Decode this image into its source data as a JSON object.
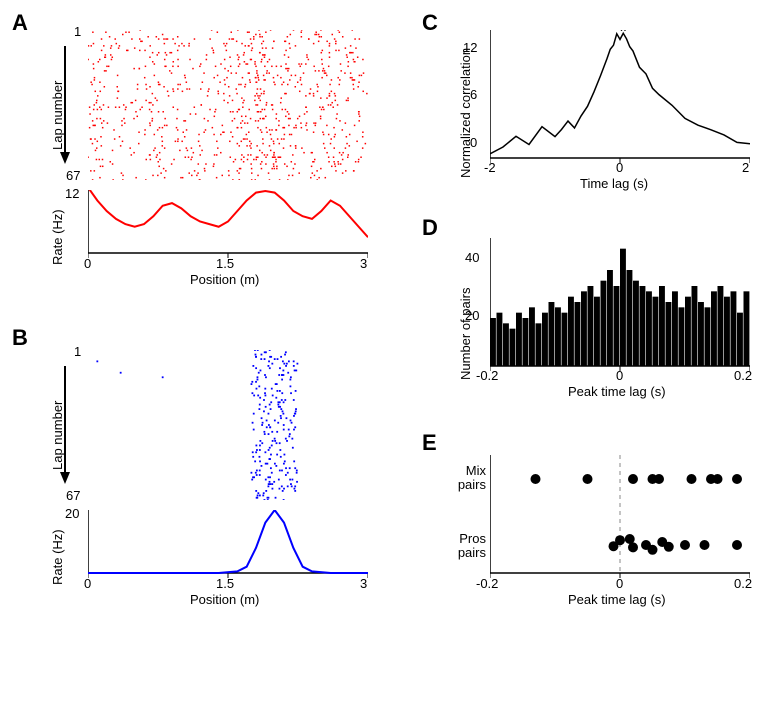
{
  "figure_width": 777,
  "figure_height": 703,
  "background_color": "#ffffff",
  "text_color": "#000000",
  "panel_label_fontsize": 22,
  "axis_label_fontsize": 13,
  "tick_fontsize": 13,
  "panelA": {
    "label": "A",
    "raster": {
      "type": "raster",
      "color": "#ff0000",
      "ylabel": "Lap number",
      "ymin": 1,
      "ymax": 67,
      "xmin": 0,
      "xmax": 3,
      "n_laps": 67,
      "density_profile_x": [
        0,
        0.1,
        0.2,
        0.3,
        0.4,
        0.5,
        0.6,
        0.7,
        0.8,
        0.9,
        1.0,
        1.1,
        1.2,
        1.3,
        1.4,
        1.5,
        1.6,
        1.7,
        1.8,
        1.9,
        2.0,
        2.1,
        2.2,
        2.3,
        2.4,
        2.5,
        2.6,
        2.7,
        2.8,
        2.9,
        3.0
      ],
      "density_profile_y": [
        0.6,
        0.5,
        0.4,
        0.3,
        0.3,
        0.35,
        0.5,
        0.6,
        0.5,
        0.4,
        0.35,
        0.3,
        0.35,
        0.4,
        0.45,
        0.55,
        0.65,
        0.75,
        0.8,
        0.85,
        0.8,
        0.6,
        0.45,
        0.4,
        0.4,
        0.5,
        0.6,
        0.5,
        0.35,
        0.3,
        0.25
      ],
      "marker_size": 1.5
    },
    "rate": {
      "type": "line",
      "color": "#ff0000",
      "line_width": 2,
      "xlabel": "Position (m)",
      "ylabel": "Rate (Hz)",
      "xlim": [
        0,
        3
      ],
      "ylim": [
        0,
        12
      ],
      "xticks": [
        0,
        1.5,
        3
      ],
      "yticks": [
        12
      ],
      "x": [
        0,
        0.1,
        0.2,
        0.3,
        0.4,
        0.5,
        0.6,
        0.7,
        0.8,
        0.9,
        1.0,
        1.1,
        1.2,
        1.3,
        1.4,
        1.5,
        1.6,
        1.7,
        1.8,
        1.9,
        2.0,
        2.1,
        2.2,
        2.3,
        2.4,
        2.5,
        2.6,
        2.7,
        2.8,
        2.9,
        3.0
      ],
      "y": [
        12.5,
        10,
        8,
        6.5,
        5.5,
        5,
        5.5,
        7,
        9,
        9.5,
        8.5,
        7,
        6,
        5.5,
        5,
        6,
        8,
        10,
        11.5,
        11.8,
        11.5,
        10,
        8,
        7,
        6.5,
        8,
        10,
        9,
        7,
        5,
        3
      ]
    }
  },
  "panelB": {
    "label": "B",
    "raster": {
      "type": "raster",
      "color": "#0000ff",
      "ylabel": "Lap number",
      "ymin": 1,
      "ymax": 67,
      "xmin": 0,
      "xmax": 3,
      "n_laps": 67,
      "field_center": 2.0,
      "field_halfwidth": 0.25,
      "spikes_per_lap": 3,
      "marker_size": 1.8,
      "sparse_outliers": [
        [
          0.1,
          5
        ],
        [
          0.35,
          10
        ],
        [
          0.8,
          12
        ]
      ]
    },
    "rate": {
      "type": "line",
      "color": "#0000ff",
      "line_width": 2,
      "xlabel": "Position (m)",
      "ylabel": "Rate (Hz)",
      "xlim": [
        0,
        3
      ],
      "ylim": [
        0,
        20
      ],
      "xticks": [
        0,
        1.5,
        3
      ],
      "yticks": [
        20
      ],
      "x": [
        0,
        0.2,
        0.4,
        0.6,
        0.8,
        1.0,
        1.2,
        1.4,
        1.6,
        1.7,
        1.8,
        1.9,
        2.0,
        2.1,
        2.2,
        2.3,
        2.4,
        2.6,
        2.8,
        3.0
      ],
      "y": [
        0,
        0,
        0,
        0,
        0,
        0,
        0,
        0,
        0.5,
        2,
        8,
        16,
        20,
        16,
        8,
        2,
        0.5,
        0,
        0,
        0
      ]
    }
  },
  "panelC": {
    "label": "C",
    "type": "line",
    "color": "#000000",
    "line_width": 1.5,
    "xlabel": "Time lag (s)",
    "ylabel": "Normalized correlation",
    "xlim": [
      -2,
      2
    ],
    "ylim": [
      -2,
      12
    ],
    "xticks": [
      -2,
      0,
      2
    ],
    "yticks": [
      0,
      6,
      12
    ],
    "star": "*",
    "star_x": 0.05,
    "star_y": 12.5,
    "x": [
      -2,
      -1.8,
      -1.6,
      -1.4,
      -1.2,
      -1.0,
      -0.9,
      -0.8,
      -0.7,
      -0.6,
      -0.5,
      -0.4,
      -0.3,
      -0.2,
      -0.15,
      -0.1,
      -0.05,
      0,
      0.05,
      0.1,
      0.15,
      0.2,
      0.3,
      0.4,
      0.5,
      0.6,
      0.8,
      1.0,
      1.2,
      1.4,
      1.6,
      1.8,
      2.0
    ],
    "y": [
      -1.5,
      -0.8,
      0.2,
      -0.3,
      1.5,
      0.5,
      1.2,
      1.8,
      1.5,
      2.5,
      3.5,
      5,
      7,
      9,
      10,
      10.5,
      11.5,
      11,
      11.8,
      11,
      10,
      9.5,
      8,
      7,
      5.5,
      5,
      4,
      2.5,
      1.8,
      1,
      0.5,
      -0.5,
      -0.3
    ],
    "noise_amplitude": 0.5
  },
  "panelD": {
    "label": "D",
    "type": "histogram",
    "color": "#000000",
    "xlabel": "Peak time lag (s)",
    "ylabel": "Number of pairs",
    "xlim": [
      -0.2,
      0.2
    ],
    "ylim": [
      0,
      48
    ],
    "xticks": [
      -0.2,
      0,
      0.2
    ],
    "yticks": [
      20,
      40
    ],
    "bin_edges": [
      -0.2,
      -0.19,
      -0.18,
      -0.17,
      -0.16,
      -0.15,
      -0.14,
      -0.13,
      -0.12,
      -0.11,
      -0.1,
      -0.09,
      -0.08,
      -0.07,
      -0.06,
      -0.05,
      -0.04,
      -0.03,
      -0.02,
      -0.01,
      0,
      0.01,
      0.02,
      0.03,
      0.04,
      0.05,
      0.06,
      0.07,
      0.08,
      0.09,
      0.1,
      0.11,
      0.12,
      0.13,
      0.14,
      0.15,
      0.16,
      0.17,
      0.18,
      0.19,
      0.2
    ],
    "counts": [
      18,
      20,
      16,
      14,
      20,
      18,
      22,
      16,
      20,
      24,
      22,
      20,
      26,
      24,
      28,
      30,
      26,
      32,
      36,
      30,
      44,
      36,
      32,
      30,
      28,
      26,
      30,
      24,
      28,
      22,
      26,
      30,
      24,
      22,
      28,
      30,
      26,
      28,
      20,
      28
    ]
  },
  "panelE": {
    "label": "E",
    "type": "scatter",
    "color": "#000000",
    "xlabel": "Peak time lag (s)",
    "xlim": [
      -0.2,
      0.2
    ],
    "xticks": [
      -0.2,
      0,
      0.2
    ],
    "marker_size": 5,
    "dashed_line_x": 0,
    "dashed_line_color": "#888888",
    "categories": [
      "Mix\npairs",
      "Pros\npairs"
    ],
    "mix_y": 1,
    "pros_y": 0,
    "mix_points": [
      -0.13,
      -0.05,
      0.02,
      0.05,
      0.06,
      0.11,
      0.14,
      0.15,
      0.18
    ],
    "pros_points": [
      -0.01,
      0.0,
      0.015,
      0.02,
      0.04,
      0.05,
      0.065,
      0.075,
      0.1,
      0.13,
      0.18
    ],
    "pros_jitter": [
      0.02,
      -0.08,
      -0.1,
      0.04,
      0.0,
      0.08,
      -0.05,
      0.03,
      0.0,
      0.0,
      0.0
    ]
  }
}
